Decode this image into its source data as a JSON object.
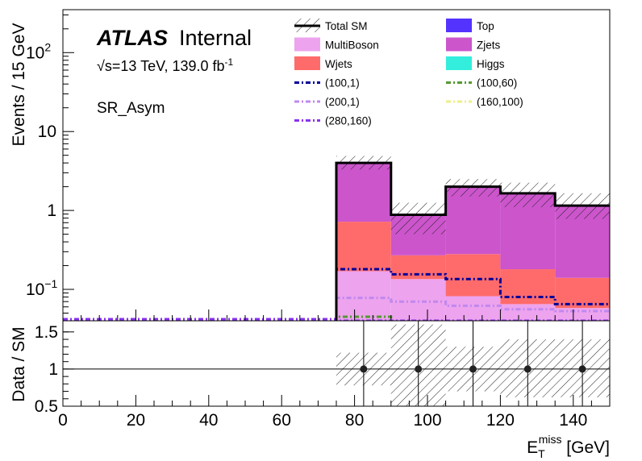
{
  "chart_data": [
    {
      "type": "bar",
      "style": "stacked-histogram",
      "yscale": "log",
      "ylabel": "Events / 15 GeV",
      "ylim": [
        0.04,
        350
      ],
      "xlim": [
        0,
        150
      ],
      "bins": [
        [
          75,
          90
        ],
        [
          90,
          105
        ],
        [
          105,
          120
        ],
        [
          120,
          135
        ],
        [
          135,
          150
        ]
      ],
      "atlas_label": "ATLAS",
      "atlas_status": "Internal",
      "energy_lumi": {
        "sqrt": "√s",
        "energy": "=13 TeV, 139.0 fb",
        "exp": "-1"
      },
      "region_label": "SR_Asym",
      "y_ticks": [
        {
          "value": 0.1,
          "label": "10",
          "exp": "−1"
        },
        {
          "value": 1,
          "label": "1",
          "exp": ""
        },
        {
          "value": 10,
          "label": "10",
          "exp": ""
        },
        {
          "value": 100,
          "label": "10",
          "exp": "2"
        }
      ],
      "stack": [
        {
          "name": "MultiBoson",
          "color": "#eda3ee",
          "values": [
            0.17,
            0.135,
            0.082,
            0.065,
            0.058
          ]
        },
        {
          "name": "Wjets",
          "color": "#ff6b6b",
          "values": [
            0.72,
            0.27,
            0.28,
            0.18,
            0.14
          ]
        },
        {
          "name": "Zjets",
          "color": "#cc55cc",
          "values": [
            4.0,
            0.88,
            2.0,
            1.65,
            1.15
          ]
        }
      ],
      "legend_only": [
        {
          "name": "Top",
          "color": "#5533ff"
        },
        {
          "name": "Higgs",
          "color": "#33eedd"
        }
      ],
      "total_sm": {
        "name": "Total SM",
        "color": "#000000",
        "values": [
          4.0,
          0.88,
          2.0,
          1.65,
          1.15
        ],
        "unc_low": [
          3.3,
          0.5,
          1.5,
          1.1,
          0.78
        ],
        "unc_high": [
          4.9,
          1.25,
          2.5,
          2.25,
          1.65
        ]
      },
      "signals": [
        {
          "name": "(100,1)",
          "color": "#000099",
          "dash": "6,3,2,3",
          "values": [
            0.18,
            0.155,
            0.135,
            0.08,
            0.065
          ]
        },
        {
          "name": "(100,60)",
          "color": "#559933",
          "dash": "6,3,2,3",
          "values": [
            0.045,
            0.03,
            0.03,
            0.03,
            0.03
          ]
        },
        {
          "name": "(200,1)",
          "color": "#c088ee",
          "dash": "6,3,2,3",
          "values": [
            0.078,
            0.07,
            0.062,
            0.056,
            0.053
          ]
        },
        {
          "name": "(160,100)",
          "color": "#eeee88",
          "dash": "6,3,2,3",
          "values": [
            0.035,
            0.035,
            0.035,
            0.035,
            0.035
          ]
        },
        {
          "name": "(280,160)",
          "color": "#8833ee",
          "dash": "6,3,2,3",
          "values": [
            0.04,
            0.04,
            0.04,
            0.04,
            0.04
          ]
        }
      ],
      "legend": [
        [
          "Total SM",
          "Top"
        ],
        [
          "MultiBoson",
          "Zjets"
        ],
        [
          "Wjets",
          "Higgs"
        ],
        [
          "(100,1)",
          "(100,60)"
        ],
        [
          "(200,1)",
          "(160,100)"
        ],
        [
          "(280,160)",
          ""
        ]
      ]
    },
    {
      "type": "scatter",
      "ylabel": "Data / SM",
      "xlabel_main": "E",
      "xlabel_sub": "T",
      "xlabel_sup": "miss",
      "xlabel_unit": " [GeV]",
      "ylim": [
        0.5,
        1.65
      ],
      "xlim": [
        0,
        150
      ],
      "y_ticks": [
        0.5,
        1,
        1.5
      ],
      "y_tick_labels": [
        "0.5",
        "1",
        "1.5"
      ],
      "x_ticks": [
        0,
        20,
        40,
        60,
        80,
        100,
        120,
        140
      ],
      "x_tick_labels": [
        "0",
        "20",
        "40",
        "60",
        "80",
        "100",
        "120",
        "140"
      ],
      "points": [
        {
          "x": 82.5,
          "y": 1.0
        },
        {
          "x": 97.5,
          "y": 1.0
        },
        {
          "x": 112.5,
          "y": 1.0
        },
        {
          "x": 127.5,
          "y": 1.0
        },
        {
          "x": 142.5,
          "y": 1.0
        }
      ],
      "band_low": [
        0.78,
        0.42,
        0.7,
        0.62,
        0.62
      ],
      "band_high": [
        1.22,
        1.6,
        1.3,
        1.4,
        1.4
      ],
      "reference_line": 1
    }
  ]
}
